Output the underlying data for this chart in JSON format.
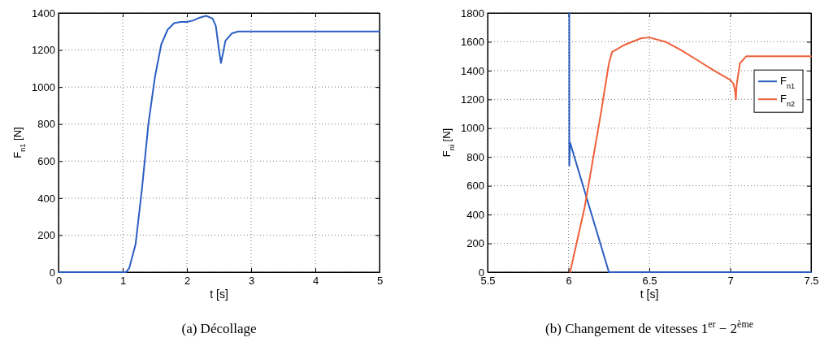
{
  "chart_data": [
    {
      "type": "line",
      "title": "(a)  Décollage",
      "xlabel": "t [s]",
      "ylabel": "F$_{n1}$ [N]",
      "xlim": [
        0,
        5
      ],
      "xticks": [
        0,
        1,
        2,
        3,
        4,
        5
      ],
      "ylim": [
        0,
        1400
      ],
      "yticks": [
        0,
        200,
        400,
        600,
        800,
        1000,
        1200,
        1400
      ],
      "grid": true,
      "line_style": "solid",
      "series": [
        {
          "color": "#2b5ec2",
          "x": [
            0,
            1,
            1.05,
            1.1,
            1.2,
            1.3,
            1.4,
            1.5,
            1.6,
            1.7,
            1.8,
            1.9,
            2.0,
            2.1,
            2.2,
            2.3,
            2.4,
            2.45,
            2.5,
            2.53,
            2.56,
            2.6,
            2.7,
            2.8,
            5
          ],
          "values": [
            0,
            0,
            0,
            20,
            150,
            450,
            800,
            1050,
            1230,
            1310,
            1345,
            1352,
            1352,
            1360,
            1375,
            1385,
            1370,
            1330,
            1200,
            1130,
            1180,
            1250,
            1290,
            1300,
            1300
          ]
        }
      ]
    },
    {
      "type": "line",
      "title": "(b)  Changement de vitesses 1$^{er}$ − 2$^{ème}$",
      "xlabel": "t [s]",
      "ylabel": "F$_{ni}$ [N]",
      "xlim": [
        5.5,
        7.5
      ],
      "xticks": [
        5.5,
        6,
        6.5,
        7,
        7.5
      ],
      "ylim": [
        0,
        1800
      ],
      "yticks": [
        0,
        200,
        400,
        600,
        800,
        1000,
        1200,
        1400,
        1600,
        1800
      ],
      "grid": true,
      "legend": "right",
      "line_style": "solid",
      "series": [
        {
          "name": "F$_{n1}$",
          "color": "#2b5ec2",
          "x": [
            6.005,
            6.005,
            6.01,
            6.25,
            7.5
          ],
          "values": [
            1800,
            740,
            900,
            0,
            0
          ]
        },
        {
          "name": "F$_{n2}$",
          "color": "#f0603a",
          "x": [
            6.01,
            6.1,
            6.2,
            6.25,
            6.27,
            6.35,
            6.45,
            6.5,
            6.6,
            6.7,
            6.8,
            6.9,
            7.0,
            7.02,
            7.03,
            7.035,
            7.04,
            7.06,
            7.1,
            7.5
          ],
          "values": [
            0,
            450,
            1100,
            1450,
            1530,
            1580,
            1625,
            1630,
            1600,
            1540,
            1470,
            1400,
            1335,
            1310,
            1260,
            1200,
            1300,
            1450,
            1500,
            1500
          ]
        }
      ]
    }
  ]
}
